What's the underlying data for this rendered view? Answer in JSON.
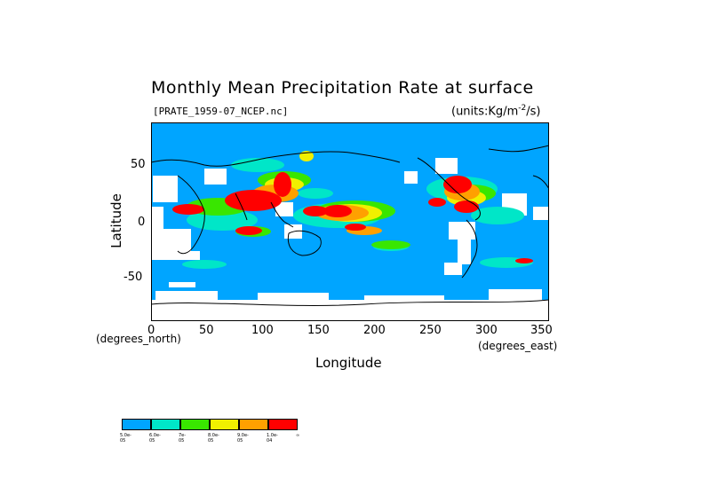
{
  "chart_data": {
    "type": "heatmap",
    "title": "Monthly Mean Precipitation Rate at surface",
    "file_label": "[PRATE_1959-07_NCEP.nc]",
    "units": "(units:Kg/m^-2/s)",
    "xlabel": "Longitude",
    "ylabel": "Latitude",
    "x_units": "(degrees_north)",
    "y_units": "(degrees_east)",
    "x_ticks": [
      "0",
      "50",
      "100",
      "150",
      "200",
      "250",
      "300",
      "350"
    ],
    "y_ticks": [
      "50",
      "0",
      "-50"
    ],
    "xlim": [
      0,
      357
    ],
    "ylim": [
      -90,
      90
    ],
    "colors": {
      "ocean_base": "#00a5ff",
      "land": "#ffffff",
      "cyan": "#00e6c8",
      "green": "#39e600",
      "yellow": "#f0f000",
      "orange": "#ffa000",
      "red": "#ff0000"
    },
    "legend": {
      "colors": [
        "#00a5ff",
        "#00e6c8",
        "#39e600",
        "#f0f000",
        "#ffa000",
        "#ff0000"
      ],
      "labels": [
        "5.0e-05",
        "6.0e-05",
        "7e-05",
        "8.0e-05",
        "9.0e-05",
        "1.0e-04",
        "∞"
      ]
    }
  }
}
